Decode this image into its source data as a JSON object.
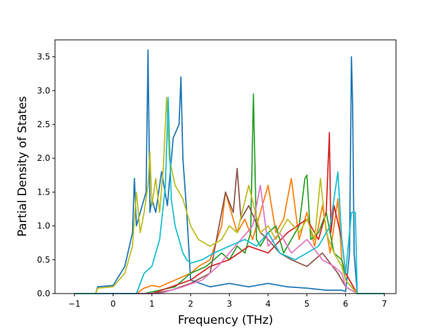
{
  "chart_data": {
    "type": "line",
    "title": "",
    "xlabel": "Frequency (THz)",
    "ylabel": "Partial Density of States",
    "xlim": [
      -1.5,
      7.3
    ],
    "ylim": [
      0,
      3.75
    ],
    "xticks": [
      -1,
      0,
      1,
      2,
      3,
      4,
      5,
      6,
      7
    ],
    "yticks": [
      0.0,
      0.5,
      1.0,
      1.5,
      2.0,
      2.5,
      3.0,
      3.5
    ],
    "xtick_labels": [
      "−1",
      "0",
      "1",
      "2",
      "3",
      "4",
      "5",
      "6",
      "7"
    ],
    "ytick_labels": [
      "0.0",
      "0.5",
      "1.0",
      "1.5",
      "2.0",
      "2.5",
      "3.0",
      "3.5"
    ],
    "grid": false,
    "legend": "none",
    "series": [
      {
        "color": "#1f77b4",
        "x": [
          -1.0,
          -0.45,
          -0.4,
          0,
          0.3,
          0.5,
          0.55,
          0.6,
          0.7,
          0.85,
          0.9,
          0.95,
          1.0,
          1.1,
          1.25,
          1.4,
          1.55,
          1.7,
          1.75,
          1.8,
          1.9,
          2.0,
          2.5,
          3.0,
          3.5,
          4.0,
          4.5,
          5.0,
          5.5,
          5.9,
          6.0,
          6.1,
          6.15,
          6.18,
          6.22,
          6.3,
          7.0
        ],
        "y": [
          0,
          0,
          0.1,
          0.12,
          0.4,
          0.9,
          1.7,
          1.0,
          1.2,
          1.5,
          3.6,
          1.2,
          1.4,
          1.2,
          1.8,
          1.3,
          2.3,
          2.5,
          3.2,
          2.0,
          1.2,
          0.2,
          0.1,
          0.15,
          0.1,
          0.15,
          0.1,
          0.08,
          0.05,
          0.05,
          0.03,
          0.6,
          3.5,
          2.8,
          0.6,
          0,
          0
        ]
      },
      {
        "color": "#ff7f0e",
        "x": [
          -1.0,
          0.6,
          0.8,
          1.0,
          1.2,
          1.4,
          1.6,
          1.8,
          2.0,
          2.2,
          2.5,
          2.8,
          2.9,
          3.0,
          3.2,
          3.4,
          3.6,
          3.8,
          4.0,
          4.2,
          4.4,
          4.6,
          4.8,
          5.0,
          5.2,
          5.4,
          5.6,
          5.8,
          5.9,
          6.0,
          6.3,
          7.0
        ],
        "y": [
          0,
          0,
          0.08,
          0.12,
          0.1,
          0.15,
          0.2,
          0.25,
          0.3,
          0.4,
          0.5,
          1.0,
          1.5,
          1.3,
          0.9,
          1.1,
          0.8,
          1.2,
          1.6,
          0.9,
          1.1,
          1.7,
          0.8,
          1.2,
          0.7,
          1.3,
          0.6,
          1.4,
          0.5,
          0.3,
          0,
          0
        ]
      },
      {
        "color": "#2ca02c",
        "x": [
          -1.0,
          0.8,
          1.2,
          1.6,
          2.0,
          2.4,
          2.8,
          3.0,
          3.2,
          3.4,
          3.55,
          3.62,
          3.7,
          3.8,
          4.0,
          4.2,
          4.4,
          4.6,
          4.8,
          4.95,
          5.0,
          5.1,
          5.3,
          5.5,
          5.7,
          5.9,
          6.0,
          6.3,
          7.0
        ],
        "y": [
          0,
          0,
          0.05,
          0.1,
          0.3,
          0.4,
          0.6,
          0.5,
          0.7,
          0.6,
          0.9,
          2.95,
          0.8,
          0.7,
          0.9,
          1.0,
          0.6,
          0.8,
          1.0,
          1.7,
          1.75,
          0.8,
          0.9,
          1.2,
          0.6,
          0.5,
          0.2,
          0,
          0
        ]
      },
      {
        "color": "#d62728",
        "x": [
          -1.0,
          1.0,
          1.5,
          2.0,
          2.5,
          3.0,
          3.5,
          4.0,
          4.5,
          5.0,
          5.3,
          5.5,
          5.58,
          5.62,
          5.7,
          5.9,
          6.0,
          6.3,
          7.0
        ],
        "y": [
          0,
          0,
          0.1,
          0.2,
          0.4,
          0.5,
          0.7,
          0.6,
          0.9,
          1.1,
          0.8,
          1.2,
          2.38,
          0.9,
          1.3,
          0.8,
          0.3,
          0,
          0
        ]
      },
      {
        "color": "#8c564b",
        "x": [
          -1.0,
          1.0,
          1.5,
          2.0,
          2.5,
          2.9,
          3.1,
          3.2,
          3.3,
          3.5,
          3.8,
          4.0,
          4.3,
          4.6,
          5.0,
          5.4,
          5.8,
          6.0,
          6.3,
          7.0
        ],
        "y": [
          0,
          0,
          0.05,
          0.15,
          0.3,
          1.5,
          1.2,
          1.85,
          1.1,
          1.3,
          0.9,
          0.8,
          0.6,
          0.5,
          0.4,
          0.6,
          0.3,
          0.1,
          0,
          0
        ]
      },
      {
        "color": "#e377c2",
        "x": [
          -1.0,
          1.2,
          1.8,
          2.3,
          2.7,
          3.0,
          3.3,
          3.6,
          3.8,
          4.0,
          4.3,
          4.6,
          5.0,
          5.4,
          5.7,
          5.9,
          6.0,
          6.3,
          7.0
        ],
        "y": [
          0,
          0,
          0.1,
          0.2,
          0.4,
          0.6,
          0.8,
          1.0,
          1.6,
          0.7,
          0.9,
          0.6,
          0.8,
          0.5,
          0.4,
          0.3,
          0.1,
          0,
          0
        ]
      },
      {
        "color": "#bcbd22",
        "x": [
          -1.0,
          -0.45,
          -0.4,
          0,
          0.3,
          0.5,
          0.6,
          0.7,
          0.8,
          0.9,
          0.95,
          1.0,
          1.1,
          1.2,
          1.3,
          1.38,
          1.45,
          1.6,
          1.8,
          2.0,
          2.2,
          2.5,
          2.8,
          3.0,
          3.2,
          3.5,
          3.8,
          4.0,
          4.2,
          4.5,
          4.8,
          5.0,
          5.2,
          5.35,
          5.5,
          5.7,
          5.9,
          6.0,
          6.3,
          7.0
        ],
        "y": [
          0,
          0,
          0.08,
          0.1,
          0.3,
          0.7,
          1.5,
          0.9,
          1.2,
          1.6,
          2.1,
          1.3,
          1.7,
          1.2,
          1.9,
          2.9,
          2.0,
          1.6,
          1.4,
          1.0,
          0.8,
          0.7,
          0.8,
          1.0,
          0.9,
          1.6,
          0.9,
          1.0,
          0.8,
          1.1,
          0.9,
          1.1,
          0.8,
          1.7,
          0.9,
          0.6,
          0.4,
          0.2,
          0,
          0
        ]
      },
      {
        "color": "#17becf",
        "x": [
          -1.0,
          0.6,
          0.8,
          1.0,
          1.2,
          1.35,
          1.42,
          1.5,
          1.6,
          1.7,
          1.8,
          1.9,
          2.0,
          2.3,
          2.6,
          3.0,
          3.4,
          3.7,
          4.0,
          4.3,
          4.7,
          5.0,
          5.3,
          5.6,
          5.8,
          5.9,
          6.0,
          6.15,
          6.25,
          6.3,
          7.0
        ],
        "y": [
          0,
          0,
          0.3,
          0.4,
          0.8,
          1.6,
          2.9,
          1.4,
          1.0,
          0.8,
          0.6,
          0.5,
          0.45,
          0.5,
          0.6,
          0.7,
          0.8,
          0.7,
          0.9,
          0.6,
          0.5,
          0.6,
          0.7,
          1.0,
          1.8,
          0.8,
          0.3,
          1.2,
          1.2,
          0,
          0
        ]
      }
    ]
  }
}
